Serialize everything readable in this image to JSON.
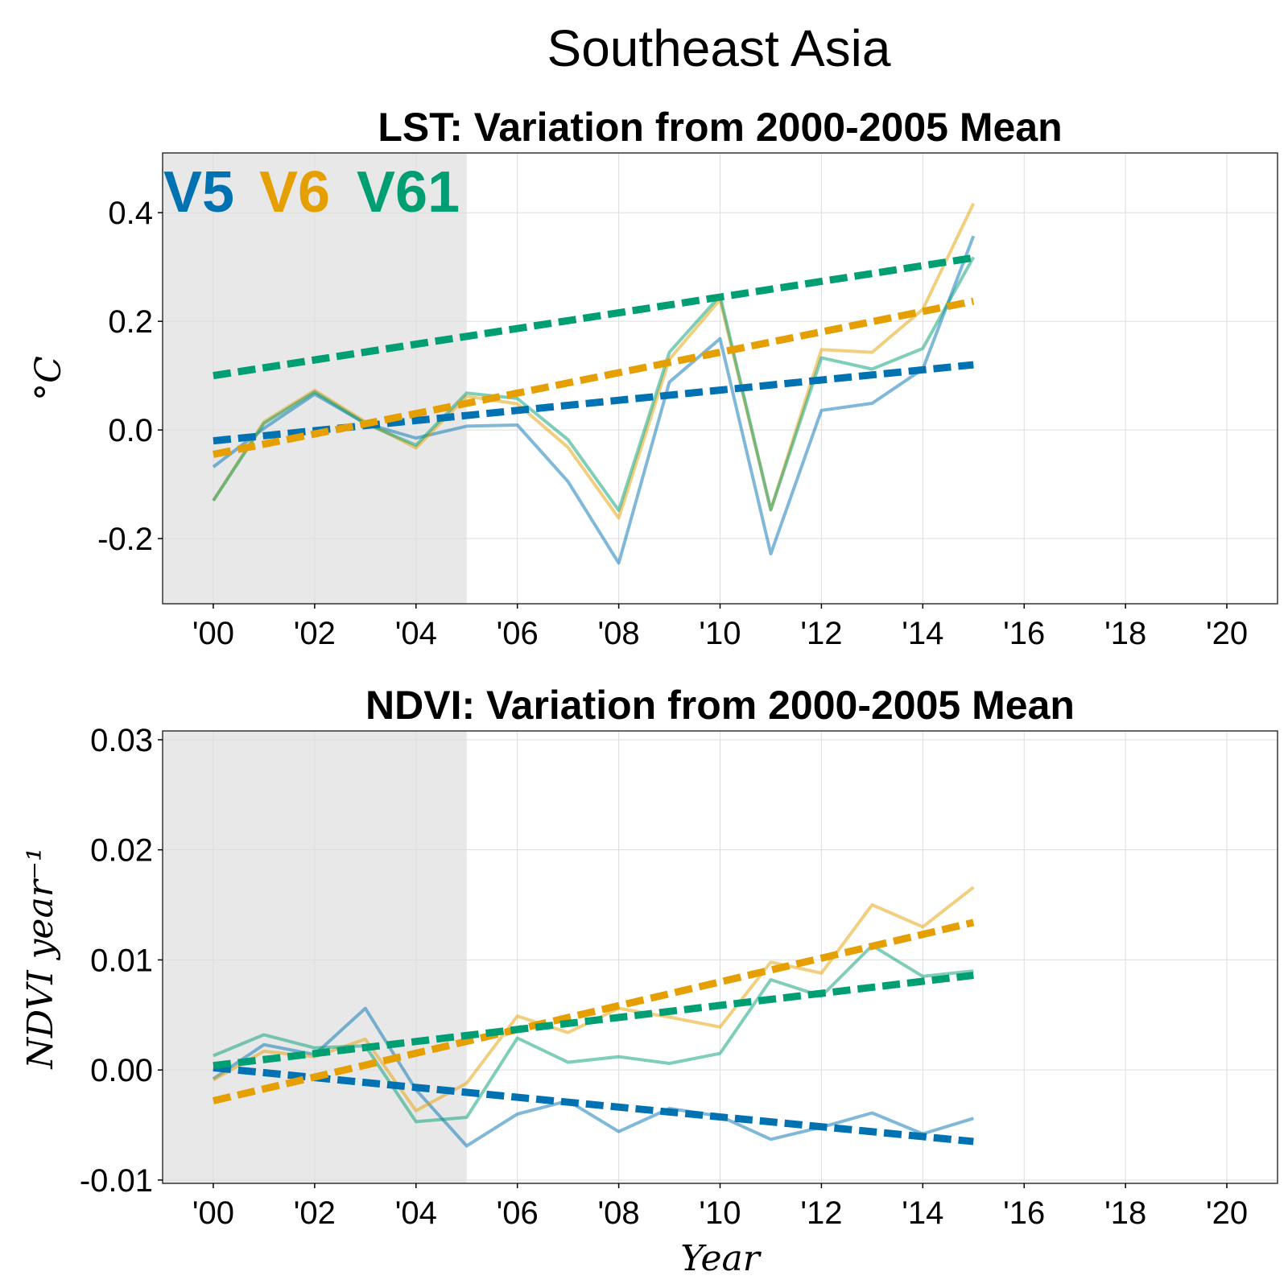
{
  "suptitle": "Southeast Asia",
  "colors": {
    "V5": "#0072b2",
    "V6": "#e69f00",
    "V61": "#009e73",
    "baseline_shade": "#e8e8e8",
    "grid": "#dddddd"
  },
  "legend_entries": [
    "V5",
    "V6",
    "V61"
  ],
  "legend_placement": "top-left",
  "x_axis_label": "Year",
  "chart_data": [
    {
      "type": "line",
      "title": "LST: Variation from 2000-2005 Mean",
      "ylabel": "°C",
      "xlabel": "",
      "xlim": [
        1999,
        2021
      ],
      "ylim": [
        -0.32,
        0.51
      ],
      "grid": true,
      "baseline_period": [
        1999,
        2005
      ],
      "x_ticks": [
        2000,
        2002,
        2004,
        2006,
        2008,
        2010,
        2012,
        2014,
        2016,
        2018,
        2020
      ],
      "x_tick_labels": [
        "'00",
        "'02",
        "'04",
        "'06",
        "'08",
        "'10",
        "'12",
        "'14",
        "'16",
        "'18",
        "'20"
      ],
      "y_ticks": [
        -0.2,
        0.0,
        0.2,
        0.4
      ],
      "y_tick_labels": [
        "-0.2",
        "0.0",
        "0.2",
        "0.4"
      ],
      "x": [
        2000,
        2001,
        2002,
        2003,
        2004,
        2005,
        2006,
        2007,
        2008,
        2009,
        2010,
        2011,
        2012,
        2013,
        2014,
        2015
      ],
      "series": [
        {
          "name": "V5",
          "values": [
            -0.068,
            0.003,
            0.066,
            0.012,
            -0.015,
            0.007,
            0.009,
            -0.095,
            -0.245,
            0.088,
            0.168,
            -0.228,
            0.036,
            0.049,
            0.112,
            0.357
          ],
          "trend": [
            -0.02,
            0.12
          ]
        },
        {
          "name": "V6",
          "values": [
            -0.13,
            0.015,
            0.073,
            0.015,
            -0.033,
            0.062,
            0.048,
            -0.032,
            -0.162,
            0.13,
            0.24,
            -0.147,
            0.148,
            0.143,
            0.222,
            0.417
          ],
          "trend": [
            -0.045,
            0.237
          ]
        },
        {
          "name": "V61",
          "values": [
            -0.13,
            0.012,
            0.07,
            0.012,
            -0.028,
            0.068,
            0.058,
            -0.018,
            -0.148,
            0.143,
            0.247,
            -0.147,
            0.133,
            0.112,
            0.15,
            0.318
          ],
          "trend": [
            0.1,
            0.317
          ]
        }
      ]
    },
    {
      "type": "line",
      "title": "NDVI: Variation from 2000-2005 Mean",
      "ylabel": "NDVI year⁻¹",
      "xlabel": "Year",
      "xlim": [
        1999,
        2021
      ],
      "ylim": [
        -0.0103,
        0.0308
      ],
      "grid": true,
      "baseline_period": [
        1999,
        2005
      ],
      "x_ticks": [
        2000,
        2002,
        2004,
        2006,
        2008,
        2010,
        2012,
        2014,
        2016,
        2018,
        2020
      ],
      "x_tick_labels": [
        "'00",
        "'02",
        "'04",
        "'06",
        "'08",
        "'10",
        "'12",
        "'14",
        "'16",
        "'18",
        "'20"
      ],
      "y_ticks": [
        -0.01,
        0.0,
        0.01,
        0.02,
        0.03
      ],
      "y_tick_labels": [
        "-0.01",
        "0.00",
        "0.01",
        "0.02",
        "0.03"
      ],
      "x": [
        2000,
        2001,
        2002,
        2003,
        2004,
        2005,
        2006,
        2007,
        2008,
        2009,
        2010,
        2011,
        2012,
        2013,
        2014,
        2015
      ],
      "series": [
        {
          "name": "V5",
          "values": [
            -0.0008,
            0.0023,
            0.0014,
            0.0056,
            -0.0018,
            -0.0069,
            -0.004,
            -0.0028,
            -0.0056,
            -0.0035,
            -0.0042,
            -0.0063,
            -0.0052,
            -0.0039,
            -0.0058,
            -0.0044
          ],
          "trend": [
            0.0002,
            -0.0065
          ]
        },
        {
          "name": "V6",
          "values": [
            -0.0009,
            0.0017,
            0.0012,
            0.0028,
            -0.0037,
            -0.0012,
            0.0049,
            0.0034,
            0.0056,
            0.0048,
            0.0039,
            0.0098,
            0.0088,
            0.015,
            0.013,
            0.0166
          ],
          "trend": [
            -0.0028,
            0.0134
          ]
        },
        {
          "name": "V61",
          "values": [
            0.0013,
            0.0032,
            0.002,
            0.0022,
            -0.0047,
            -0.0043,
            0.0029,
            0.0007,
            0.0012,
            0.0006,
            0.0015,
            0.0082,
            0.0067,
            0.0113,
            0.0085,
            0.009
          ],
          "trend": [
            0.0004,
            0.0086
          ]
        }
      ]
    }
  ]
}
